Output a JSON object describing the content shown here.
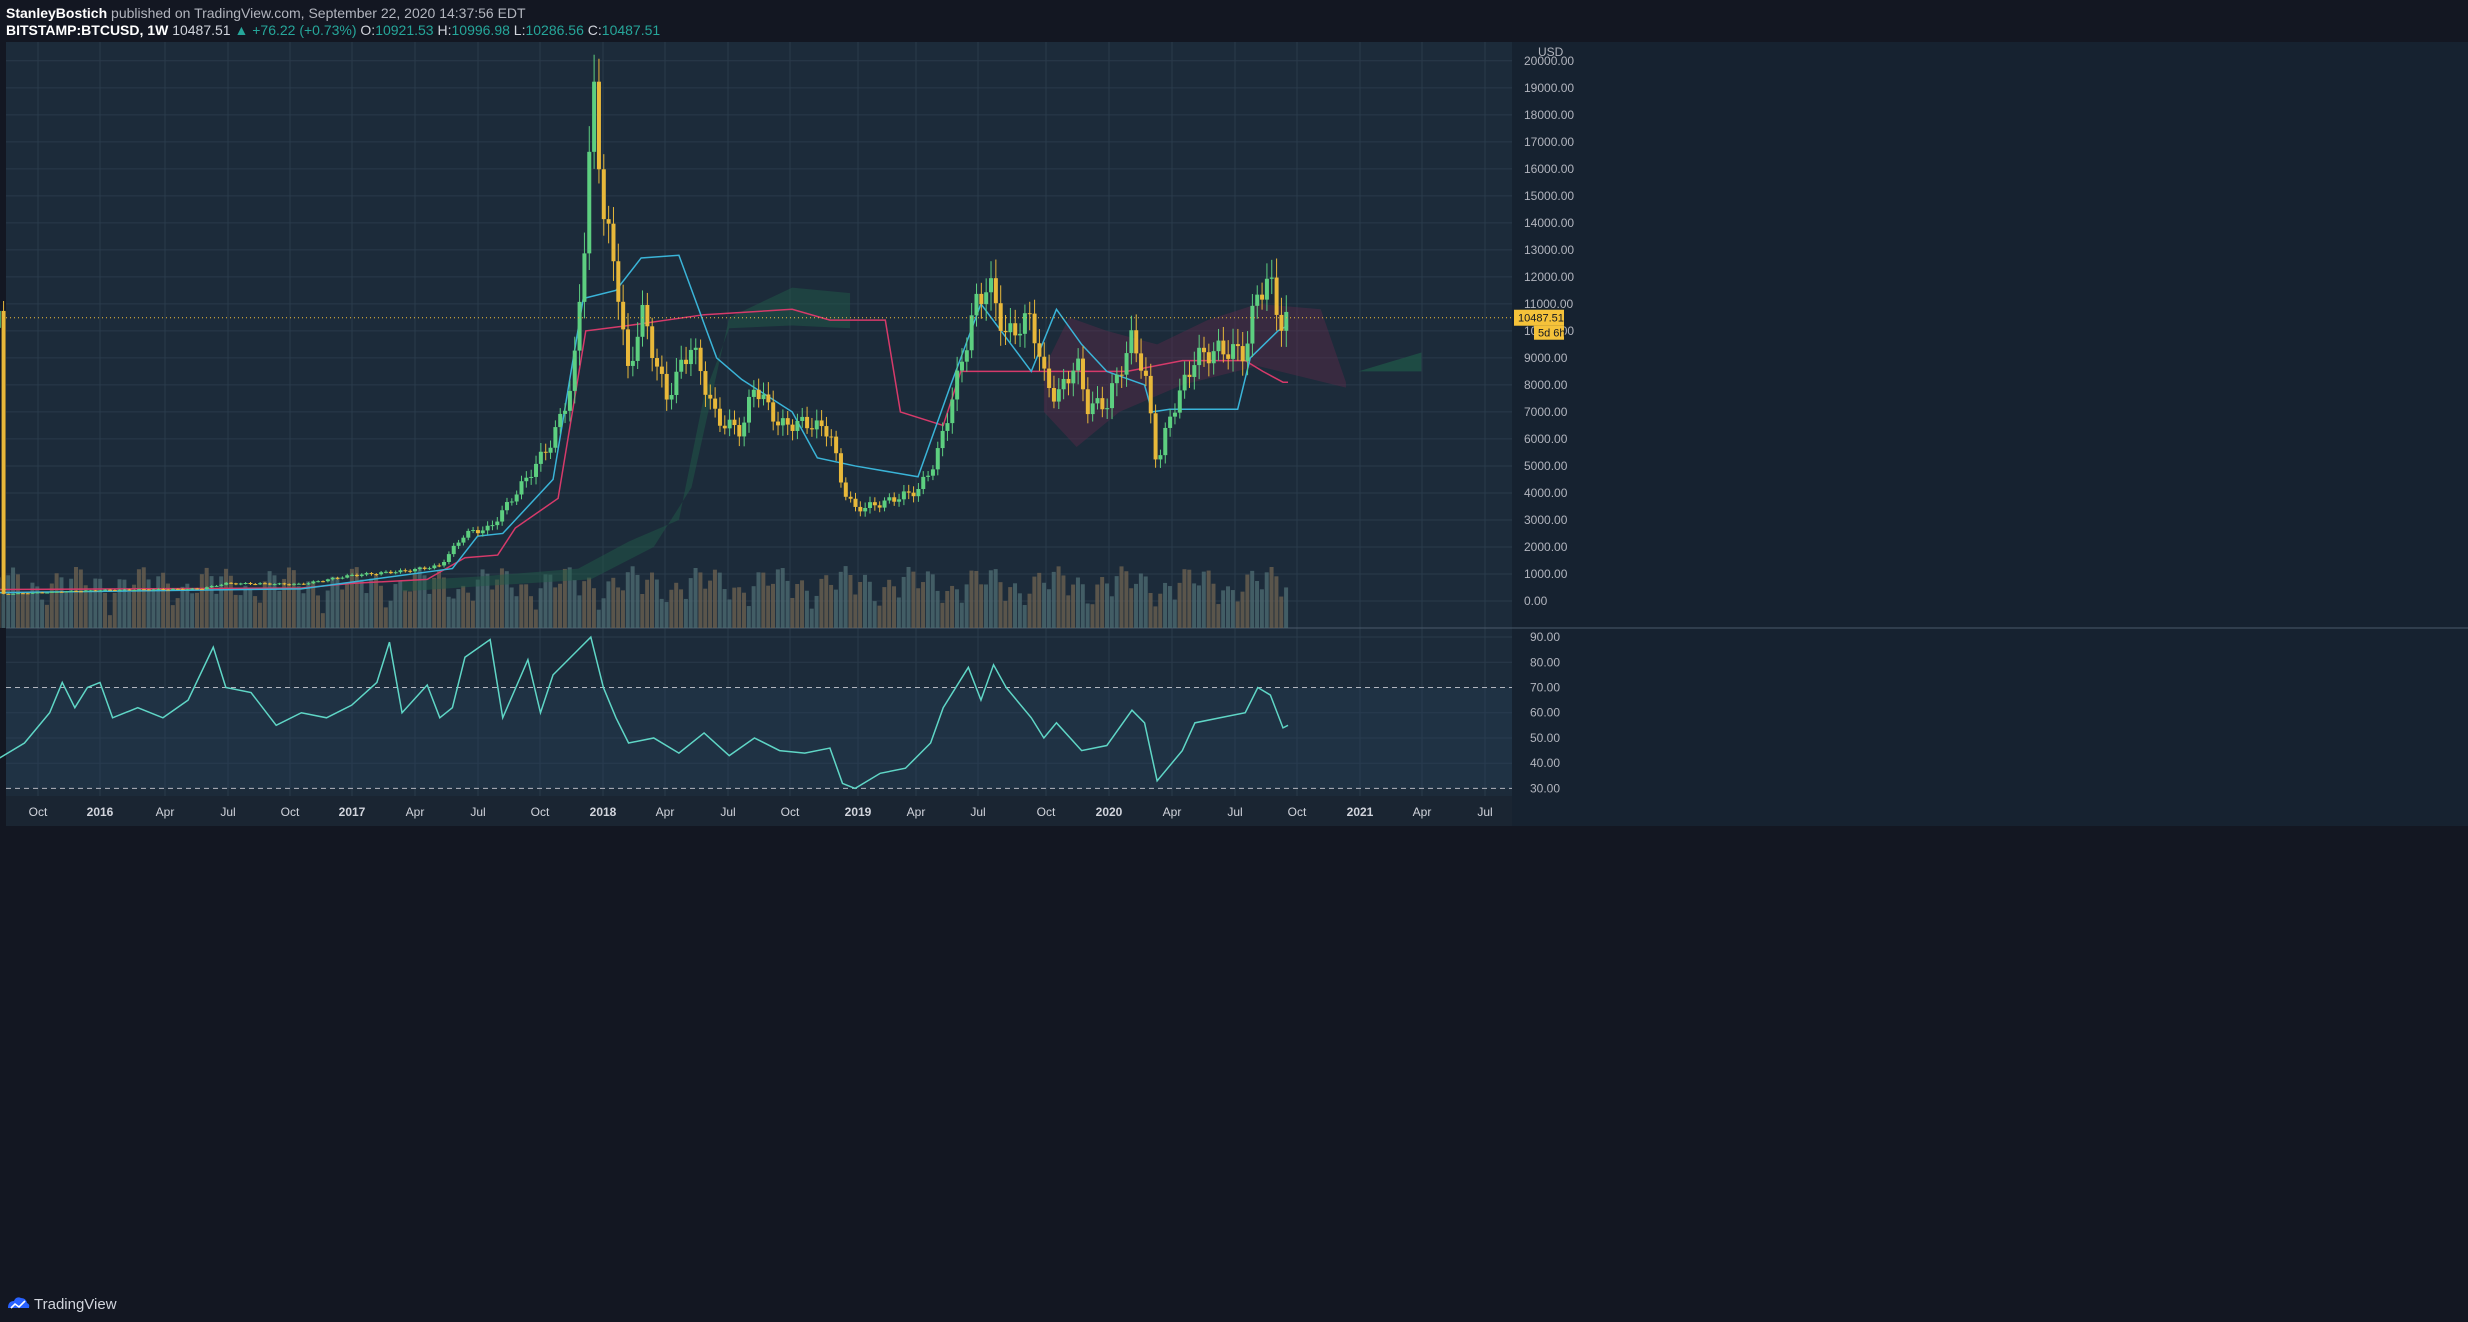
{
  "header": {
    "author": "StanleyBostich",
    "published": "published on TradingView.com, September 22, 2020 14:37:56 EDT",
    "symbol": "BITSTAMP:BTCUSD, 1W",
    "last": "10487.51",
    "change": "▲ +76.22 (+0.73%)",
    "o_label": "O:",
    "o_value": "10921.53",
    "h_label": "H:",
    "h_value": "10996.98",
    "l_label": "L:",
    "l_value": "10286.56",
    "c_label": "C:",
    "c_value": "10487.51"
  },
  "footer": {
    "brand": "TradingView",
    "logo_icon": "tradingview-logo-icon"
  },
  "colors": {
    "background": "#1c2b3a",
    "grid": "#2a3b4b",
    "bull": "#5dcf80",
    "bear": "#e8b83a",
    "conversion": "#3ab4d8",
    "base": "#d63a6a",
    "rsi": "#5fd6c6",
    "price_tag": "#f5c23a"
  },
  "chart_data": {
    "type": "candlestick",
    "currency": "USD",
    "x_labels": [
      "Oct",
      "2016",
      "Apr",
      "Jul",
      "Oct",
      "2017",
      "Apr",
      "Jul",
      "Oct",
      "2018",
      "Apr",
      "Jul",
      "Oct",
      "2019",
      "Apr",
      "Jul",
      "Oct",
      "2020",
      "Apr",
      "Jul",
      "Oct",
      "2021",
      "Apr",
      "Jul"
    ],
    "y_ticks": [
      "0.00",
      "1000.00",
      "2000.00",
      "3000.00",
      "4000.00",
      "5000.00",
      "6000.00",
      "7000.00",
      "8000.00",
      "9000.00",
      "10000.00",
      "11000.00",
      "12000.00",
      "13000.00",
      "14000.00",
      "15000.00",
      "16000.00",
      "17000.00",
      "18000.00",
      "19000.00",
      "20000.00"
    ],
    "ylim": [
      -1000,
      20400
    ],
    "last_price": "10487.51",
    "countdown": "5d 6h",
    "price_path": [
      [
        2015.6,
        250
      ],
      [
        2016.0,
        400
      ],
      [
        2016.4,
        450
      ],
      [
        2016.5,
        650
      ],
      [
        2016.8,
        620
      ],
      [
        2017.0,
        950
      ],
      [
        2017.2,
        1100
      ],
      [
        2017.35,
        1300
      ],
      [
        2017.45,
        2500
      ],
      [
        2017.55,
        2700
      ],
      [
        2017.7,
        4600
      ],
      [
        2017.8,
        6000
      ],
      [
        2017.88,
        8200
      ],
      [
        2017.93,
        14000
      ],
      [
        2017.96,
        19000
      ],
      [
        2018.0,
        14500
      ],
      [
        2018.06,
        11500
      ],
      [
        2018.1,
        8200
      ],
      [
        2018.15,
        10800
      ],
      [
        2018.25,
        7500
      ],
      [
        2018.35,
        9500
      ],
      [
        2018.45,
        6700
      ],
      [
        2018.55,
        6300
      ],
      [
        2018.6,
        8000
      ],
      [
        2018.7,
        6500
      ],
      [
        2018.8,
        6600
      ],
      [
        2018.9,
        6300
      ],
      [
        2018.95,
        4200
      ],
      [
        2019.0,
        3400
      ],
      [
        2019.1,
        3600
      ],
      [
        2019.25,
        4100
      ],
      [
        2019.32,
        5200
      ],
      [
        2019.4,
        8000
      ],
      [
        2019.48,
        11000
      ],
      [
        2019.53,
        11800
      ],
      [
        2019.6,
        9800
      ],
      [
        2019.7,
        10500
      ],
      [
        2019.75,
        8300
      ],
      [
        2019.8,
        7500
      ],
      [
        2019.88,
        8900
      ],
      [
        2019.92,
        7200
      ],
      [
        2020.0,
        7300
      ],
      [
        2020.1,
        9700
      ],
      [
        2020.15,
        8500
      ],
      [
        2020.2,
        5000
      ],
      [
        2020.25,
        6800
      ],
      [
        2020.35,
        9000
      ],
      [
        2020.45,
        9300
      ],
      [
        2020.55,
        9200
      ],
      [
        2020.6,
        11500
      ],
      [
        2020.65,
        11800
      ],
      [
        2020.7,
        10000
      ],
      [
        2020.72,
        10487
      ]
    ],
    "rsi": {
      "ticks": [
        "30.00",
        "40.00",
        "50.00",
        "60.00",
        "70.00",
        "80.00",
        "90.00"
      ],
      "ylim": [
        27,
        92
      ],
      "levels": [
        70,
        30
      ],
      "values": [
        [
          2015.5,
          41
        ],
        [
          2015.6,
          42
        ],
        [
          2015.7,
          48
        ],
        [
          2015.8,
          60
        ],
        [
          2015.85,
          72
        ],
        [
          2015.9,
          62
        ],
        [
          2015.95,
          70
        ],
        [
          2016.0,
          72
        ],
        [
          2016.05,
          58
        ],
        [
          2016.15,
          62
        ],
        [
          2016.25,
          58
        ],
        [
          2016.35,
          65
        ],
        [
          2016.45,
          86
        ],
        [
          2016.5,
          70
        ],
        [
          2016.6,
          68
        ],
        [
          2016.7,
          55
        ],
        [
          2016.8,
          60
        ],
        [
          2016.9,
          58
        ],
        [
          2017.0,
          63
        ],
        [
          2017.1,
          72
        ],
        [
          2017.15,
          88
        ],
        [
          2017.2,
          60
        ],
        [
          2017.3,
          71
        ],
        [
          2017.35,
          58
        ],
        [
          2017.4,
          62
        ],
        [
          2017.45,
          82
        ],
        [
          2017.55,
          89
        ],
        [
          2017.6,
          58
        ],
        [
          2017.7,
          81
        ],
        [
          2017.75,
          60
        ],
        [
          2017.8,
          75
        ],
        [
          2017.87,
          82
        ],
        [
          2017.95,
          90
        ],
        [
          2018.0,
          70
        ],
        [
          2018.05,
          58
        ],
        [
          2018.1,
          48
        ],
        [
          2018.2,
          50
        ],
        [
          2018.3,
          44
        ],
        [
          2018.4,
          52
        ],
        [
          2018.5,
          43
        ],
        [
          2018.6,
          50
        ],
        [
          2018.7,
          45
        ],
        [
          2018.8,
          44
        ],
        [
          2018.9,
          46
        ],
        [
          2018.95,
          32
        ],
        [
          2019.0,
          30
        ],
        [
          2019.1,
          36
        ],
        [
          2019.2,
          38
        ],
        [
          2019.3,
          48
        ],
        [
          2019.35,
          62
        ],
        [
          2019.45,
          78
        ],
        [
          2019.5,
          65
        ],
        [
          2019.55,
          79
        ],
        [
          2019.6,
          70
        ],
        [
          2019.7,
          58
        ],
        [
          2019.75,
          50
        ],
        [
          2019.8,
          56
        ],
        [
          2019.9,
          45
        ],
        [
          2020.0,
          47
        ],
        [
          2020.1,
          61
        ],
        [
          2020.15,
          56
        ],
        [
          2020.2,
          33
        ],
        [
          2020.3,
          45
        ],
        [
          2020.35,
          56
        ],
        [
          2020.45,
          58
        ],
        [
          2020.55,
          60
        ],
        [
          2020.6,
          70
        ],
        [
          2020.65,
          67
        ],
        [
          2020.7,
          54
        ],
        [
          2020.72,
          55
        ]
      ]
    },
    "cloud_ahead_from": 2020.98,
    "cloud_ahead_to": 2021.25
  }
}
